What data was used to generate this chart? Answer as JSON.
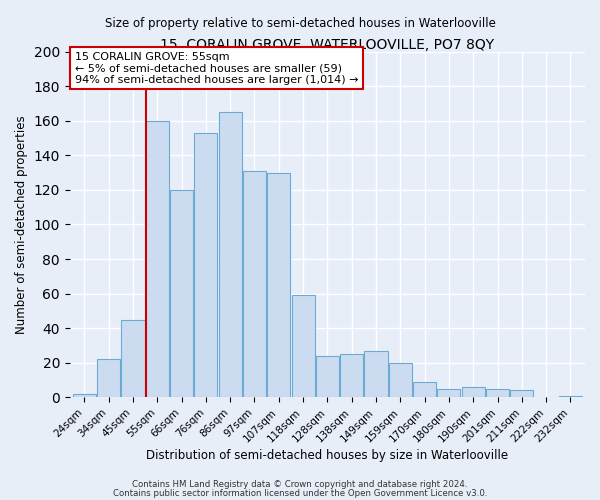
{
  "title": "15, CORALIN GROVE, WATERLOOVILLE, PO7 8QY",
  "subtitle": "Size of property relative to semi-detached houses in Waterlooville",
  "xlabel": "Distribution of semi-detached houses by size in Waterlooville",
  "ylabel": "Number of semi-detached properties",
  "categories": [
    "24sqm",
    "34sqm",
    "45sqm",
    "55sqm",
    "66sqm",
    "76sqm",
    "86sqm",
    "97sqm",
    "107sqm",
    "118sqm",
    "128sqm",
    "138sqm",
    "149sqm",
    "159sqm",
    "170sqm",
    "180sqm",
    "190sqm",
    "201sqm",
    "211sqm",
    "222sqm",
    "232sqm"
  ],
  "values": [
    2,
    22,
    45,
    160,
    120,
    153,
    165,
    131,
    130,
    59,
    24,
    25,
    27,
    20,
    9,
    5,
    6,
    5,
    4,
    0,
    1
  ],
  "bar_color": "#ccdcf0",
  "bar_edge_color": "#6aaad4",
  "highlight_index": 3,
  "highlight_line_color": "#cc0000",
  "annotation_title": "15 CORALIN GROVE: 55sqm",
  "annotation_line1": "← 5% of semi-detached houses are smaller (59)",
  "annotation_line2": "94% of semi-detached houses are larger (1,014) →",
  "annotation_box_color": "#ffffff",
  "annotation_box_edge": "#cc0000",
  "ylim": [
    0,
    200
  ],
  "yticks": [
    0,
    20,
    40,
    60,
    80,
    100,
    120,
    140,
    160,
    180,
    200
  ],
  "footer1": "Contains HM Land Registry data © Crown copyright and database right 2024.",
  "footer2": "Contains public sector information licensed under the Open Government Licence v3.0.",
  "bg_color": "#e8eef8",
  "plot_bg_color": "#e8eef8"
}
